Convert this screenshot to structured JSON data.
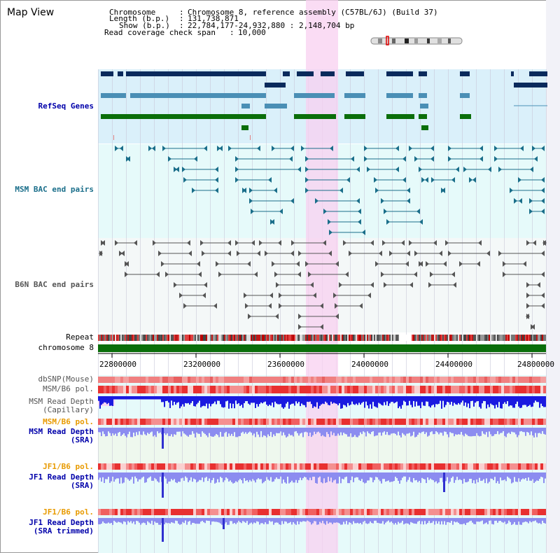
{
  "title": "Map View",
  "header": {
    "chromosome_label": "Chromosome",
    "chromosome_value": "Chromosome 8, reference assembly (C57BL/6J) (Build 37)",
    "length_label": "Length (b.p.)",
    "length_value": "131,738,871",
    "show_label": "Show (b.p.)",
    "show_value": "22,784,177-24,932,880 : 2,148,704 bp",
    "span_label": "Read coverage check span",
    "span_value": "10,000",
    "separator": ":"
  },
  "tracks": {
    "refseq": "RefSeq Genes",
    "msm_bac": "MSM BAC end pairs",
    "b6n_bac": "B6N BAC end pairs",
    "repeat": "Repeat",
    "chromosome": "chromosome 8",
    "dbsnp": "dbSNP(Mouse)",
    "msm_b6_pol": "MSM/B6 pol.",
    "msm_depth_cap_1": "MSM Read Depth",
    "msm_depth_cap_2": "(Capillary)",
    "msm_b6_pol_2": "MSM/B6 pol.",
    "msm_depth_sra_1": "MSM Read Depth",
    "msm_depth_sra_2": "(SRA)",
    "jf1_b6_pol": "JF1/B6 pol.",
    "jf1_depth_sra_1": "JF1 Read Depth",
    "jf1_depth_sra_2": "(SRA)",
    "jf1_b6_pol_2": "JF1/B6 pol.",
    "jf1_depth_trim_1": "JF1 Read Depth",
    "jf1_depth_trim_2": "(SRA trimmed)"
  },
  "axis": {
    "ticks": [
      "22800000",
      "23200000",
      "23600000",
      "24000000",
      "24400000",
      "24800000"
    ]
  },
  "colors": {
    "refseq_bg": "#daf0fa",
    "track_bg": "#e6fafa",
    "highlight": "#f8d8f4",
    "gene_dark": "#0a2a5c",
    "gene_mid": "#4a8fb5",
    "gene_green": "#0a6e0a",
    "bac_teal": "#1a6e8a",
    "bac_gray": "#555555",
    "chromosome_bar": "#0a6e0a",
    "depth_blue": "#1a1ae0",
    "depth_light": "#8c8cf0",
    "label_blue": "#0000aa",
    "label_orange": "#e89a00",
    "label_teal": "#1a6e8a"
  }
}
